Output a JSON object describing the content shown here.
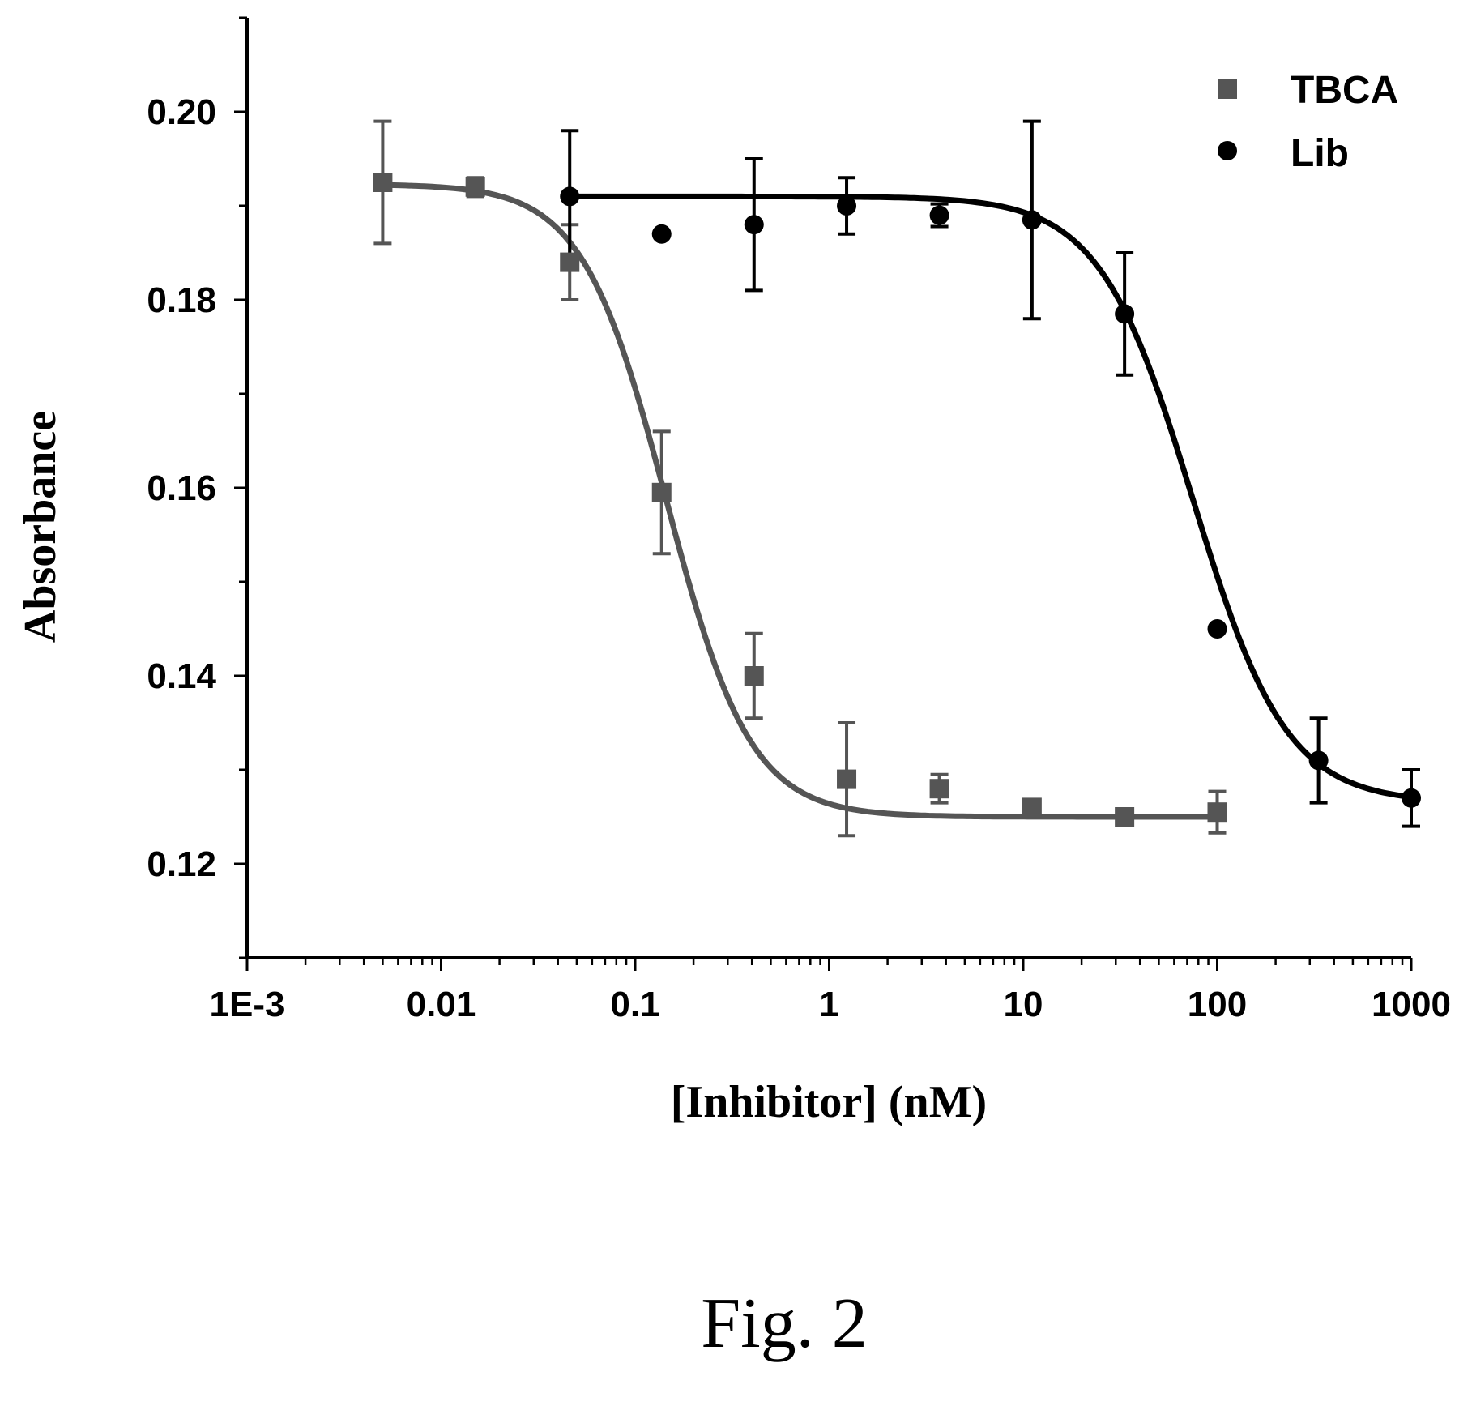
{
  "chart_data": {
    "type": "scatter",
    "title": "",
    "xlabel": "[Inhibitor] (nM)",
    "ylabel": "Absorbance",
    "xscale": "log",
    "xlim": [
      0.001,
      1000
    ],
    "ylim": [
      0.11,
      0.21
    ],
    "x_ticks": [
      0.001,
      0.01,
      0.1,
      1,
      10,
      100,
      1000
    ],
    "x_tick_labels": [
      "1E-3",
      "0.01",
      "0.1",
      "1",
      "10",
      "100",
      "1000"
    ],
    "y_ticks": [
      0.12,
      0.14,
      0.16,
      0.18,
      0.2
    ],
    "y_tick_labels": [
      "0.12",
      "0.14",
      "0.16",
      "0.18",
      "0.20"
    ],
    "legend_position": "top-right",
    "grid": false,
    "series": [
      {
        "name": "TBCA",
        "marker": "square",
        "color": "#555555",
        "x": [
          0.005,
          0.015,
          0.046,
          0.137,
          0.41,
          1.23,
          3.7,
          11.1,
          33.3,
          100
        ],
        "y": [
          0.1925,
          0.192,
          0.184,
          0.1595,
          0.14,
          0.129,
          0.128,
          0.126,
          0.125,
          0.1255
        ],
        "error": [
          0.0065,
          0.001,
          0.004,
          0.0065,
          0.0045,
          0.006,
          0.0015,
          0.0007,
          0.0005,
          0.0022
        ],
        "fit": {
          "top": 0.1923,
          "bottom": 0.125,
          "ec50": 0.145,
          "hill": 2.0
        }
      },
      {
        "name": "Lib",
        "marker": "circle",
        "color": "#000000",
        "x": [
          0.046,
          0.137,
          0.41,
          1.23,
          3.7,
          11.1,
          33.3,
          100,
          333,
          1000
        ],
        "y": [
          0.191,
          0.187,
          0.188,
          0.19,
          0.189,
          0.1885,
          0.1785,
          0.145,
          0.131,
          0.127
        ],
        "error": [
          0.007,
          0,
          0.007,
          0.003,
          0.0012,
          0.0105,
          0.0065,
          0,
          0.0045,
          0.003
        ],
        "fit": {
          "top": 0.191,
          "bottom": 0.1265,
          "ec50": 75,
          "hill": 1.8
        }
      }
    ]
  },
  "caption": "Fig. 2"
}
